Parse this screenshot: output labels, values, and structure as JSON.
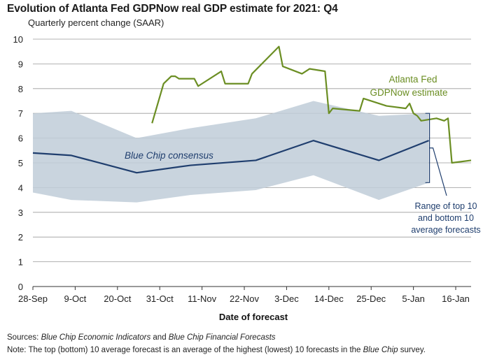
{
  "chart_data": {
    "type": "line",
    "title": "Evolution of Atlanta Fed GDPNow real GDP estimate for 2021: Q4",
    "subtitle": "Quarterly percent change (SAAR)",
    "xlabel": "Date of forecast",
    "ylabel": "",
    "x_start": "2021-09-28",
    "x_end": "2022-01-20",
    "x_ticks": [
      "28-Sep",
      "9-Oct",
      "20-Oct",
      "31-Oct",
      "11-Nov",
      "22-Nov",
      "3-Dec",
      "14-Dec",
      "25-Dec",
      "5-Jan",
      "16-Jan"
    ],
    "ylim": [
      0,
      10
    ],
    "y_ticks": [
      0,
      1,
      2,
      3,
      4,
      5,
      6,
      7,
      8,
      9,
      10
    ],
    "grid": "horizontal",
    "series": [
      {
        "name": "Atlanta Fed GDPNow estimate",
        "color": "#6b8e23",
        "points": [
          [
            "2021-10-29",
            6.6
          ],
          [
            "2021-11-01",
            8.2
          ],
          [
            "2021-11-03",
            8.5
          ],
          [
            "2021-11-04",
            8.5
          ],
          [
            "2021-11-05",
            8.4
          ],
          [
            "2021-11-09",
            8.4
          ],
          [
            "2021-11-10",
            8.1
          ],
          [
            "2021-11-16",
            8.7
          ],
          [
            "2021-11-17",
            8.2
          ],
          [
            "2021-11-23",
            8.2
          ],
          [
            "2021-11-24",
            8.6
          ],
          [
            "2021-12-01",
            9.7
          ],
          [
            "2021-12-02",
            8.9
          ],
          [
            "2021-12-07",
            8.6
          ],
          [
            "2021-12-09",
            8.8
          ],
          [
            "2021-12-13",
            8.7
          ],
          [
            "2021-12-14",
            7.0
          ],
          [
            "2021-12-15",
            7.2
          ],
          [
            "2021-12-22",
            7.1
          ],
          [
            "2021-12-23",
            7.6
          ],
          [
            "2021-12-29",
            7.3
          ],
          [
            "2022-01-03",
            7.2
          ],
          [
            "2022-01-04",
            7.4
          ],
          [
            "2022-01-05",
            7.0
          ],
          [
            "2022-01-06",
            6.9
          ],
          [
            "2022-01-07",
            6.7
          ],
          [
            "2022-01-11",
            6.8
          ],
          [
            "2022-01-13",
            6.7
          ],
          [
            "2022-01-14",
            6.8
          ],
          [
            "2022-01-15",
            5.0
          ],
          [
            "2022-01-20",
            5.1
          ]
        ]
      },
      {
        "name": "Blue Chip consensus",
        "color": "#1f3e6e",
        "points": [
          [
            "2021-09-28",
            5.4
          ],
          [
            "2021-10-08",
            5.3
          ],
          [
            "2021-10-25",
            4.6
          ],
          [
            "2021-11-08",
            4.9
          ],
          [
            "2021-11-25",
            5.1
          ],
          [
            "2021-12-10",
            5.9
          ],
          [
            "2021-12-27",
            5.1
          ],
          [
            "2022-01-09",
            5.9
          ]
        ]
      }
    ],
    "band": {
      "name": "Range of top 10 and bottom 10 average forecasts",
      "color": "#bfcdd8",
      "upper": [
        [
          "2021-09-28",
          7.0
        ],
        [
          "2021-10-08",
          7.1
        ],
        [
          "2021-10-25",
          6.0
        ],
        [
          "2021-11-08",
          6.4
        ],
        [
          "2021-11-25",
          6.8
        ],
        [
          "2021-12-10",
          7.5
        ],
        [
          "2021-12-27",
          6.9
        ],
        [
          "2022-01-09",
          7.0
        ]
      ],
      "lower": [
        [
          "2021-09-28",
          3.8
        ],
        [
          "2021-10-08",
          3.5
        ],
        [
          "2021-10-25",
          3.4
        ],
        [
          "2021-11-08",
          3.7
        ],
        [
          "2021-11-25",
          3.9
        ],
        [
          "2021-12-10",
          4.5
        ],
        [
          "2021-12-27",
          3.5
        ],
        [
          "2022-01-09",
          4.2
        ]
      ]
    },
    "annotations": {
      "gdpnow_line1": "Atlanta Fed",
      "gdpnow_line2": "GDPNow estimate",
      "bluechip": "Blue Chip consensus",
      "range_line1": "Range of top 10",
      "range_line2": "and bottom 10",
      "range_line3": "average forecasts"
    }
  },
  "footnotes": {
    "sources_label": "Sources:",
    "sources_part1": "Blue Chip Economic Indicators",
    "sources_and": " and ",
    "sources_part2": "Blue Chip Financial Forecasts",
    "note_label": "Note:",
    "note_text": " The top (bottom) 10 average forecast is an average of the highest (lowest) 10 forecasts in the ",
    "note_italic": "Blue Chip",
    "note_end": " survey."
  }
}
